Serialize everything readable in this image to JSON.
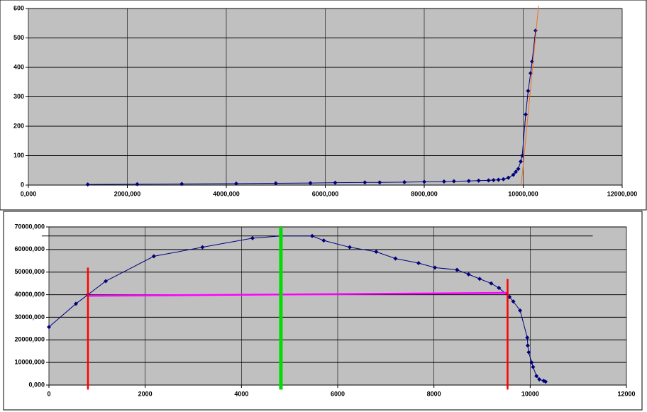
{
  "chart_data": [
    {
      "type": "scatter",
      "xlim": [
        0,
        12000000
      ],
      "xticks": [
        {
          "value": 0,
          "label": "0,000"
        },
        {
          "value": 2000000,
          "label": "2000,000"
        },
        {
          "value": 4000000,
          "label": "4000,000"
        },
        {
          "value": 6000000,
          "label": "6000,000"
        },
        {
          "value": 8000000,
          "label": "8000,000"
        },
        {
          "value": 10000000,
          "label": "10000,000"
        },
        {
          "value": 12000000,
          "label": "12000,000"
        }
      ],
      "ylim": [
        0,
        600
      ],
      "yticks": [
        0,
        100,
        200,
        300,
        400,
        500,
        600
      ],
      "grid": true,
      "series": [
        {
          "color": "#000080",
          "marker": true,
          "style": "thin",
          "x": [
            1200000,
            2200000,
            3100000,
            4200000,
            5000000,
            5700000,
            6200000,
            6800000,
            7100000,
            7600000,
            8000000,
            8400000,
            8600000,
            8900000,
            9100000,
            9300000,
            9400000,
            9500000,
            9600000,
            9700000,
            9800000,
            9850000,
            9900000,
            9950000,
            9980000,
            10050000,
            10100000,
            10150000,
            10180000,
            10250000
          ],
          "values": [
            2,
            3,
            4,
            5,
            6,
            7,
            8,
            9,
            9,
            10,
            11,
            12,
            13,
            14,
            15,
            16,
            17,
            18,
            20,
            25,
            35,
            45,
            55,
            80,
            100,
            240,
            320,
            380,
            420,
            525
          ]
        },
        {
          "color": "#f07020",
          "marker": false,
          "style": "thin",
          "x": [
            9960000,
            10310000
          ],
          "values": [
            0,
            610
          ]
        }
      ]
    },
    {
      "type": "scatter",
      "xlim": [
        0,
        12000
      ],
      "xticks": [
        0,
        2000,
        4000,
        6000,
        8000,
        10000,
        12000
      ],
      "ylim": [
        0,
        70000000
      ],
      "yticks": [
        {
          "value": 0,
          "label": "0,000"
        },
        {
          "value": 10000000,
          "label": "10000,000"
        },
        {
          "value": 20000000,
          "label": "20000,000"
        },
        {
          "value": 30000000,
          "label": "30000,000"
        },
        {
          "value": 40000000,
          "label": "40000,000"
        },
        {
          "value": 50000000,
          "label": "50000,000"
        },
        {
          "value": 60000000,
          "label": "60000,000"
        },
        {
          "value": 70000000,
          "label": "70000,000"
        }
      ],
      "grid": true,
      "series": [
        {
          "color": "#000000",
          "marker": false,
          "style": "thin",
          "x": [
            -150,
            11300
          ],
          "values": [
            66000000,
            66000000
          ]
        },
        {
          "color": "#000080",
          "marker": true,
          "style": "thin",
          "x": [
            0,
            560,
            810,
            1180,
            2180,
            3190,
            4230,
            4820,
            5470,
            5710,
            6250,
            6800,
            7200,
            7680,
            8020,
            8480,
            8720,
            8950,
            9190,
            9350,
            9570,
            9650,
            9790,
            9940,
            9950,
            9970,
            10030,
            10060,
            10130,
            10190,
            10280,
            10320
          ],
          "values": [
            25700000,
            36000000,
            40000000,
            46000000,
            57000000,
            61000000,
            65000000,
            66000000,
            66000000,
            64000000,
            61000000,
            59000000,
            56000000,
            54000000,
            52000000,
            51000000,
            49000000,
            47000000,
            45000000,
            43000000,
            39000000,
            37000000,
            33000000,
            21000000,
            17500000,
            14500000,
            10000000,
            8000000,
            4000000,
            2500000,
            1900000,
            1500000
          ]
        },
        {
          "color": "#ff00ff",
          "marker": false,
          "style": "thick",
          "x": [
            810,
            9530
          ],
          "values": [
            39500000,
            40800000
          ]
        },
        {
          "color": "#ff0000",
          "marker": false,
          "style": "thick",
          "x": [
            810,
            810
          ],
          "values": [
            -2000000,
            52000000
          ]
        },
        {
          "color": "#ff0000",
          "marker": false,
          "style": "thick",
          "x": [
            9530,
            9530
          ],
          "values": [
            -2000000,
            47000000
          ]
        },
        {
          "color": "#00dd00",
          "marker": false,
          "style": "wide",
          "x": [
            4820,
            4820
          ],
          "values": [
            -2000000,
            70000000
          ]
        }
      ]
    }
  ]
}
